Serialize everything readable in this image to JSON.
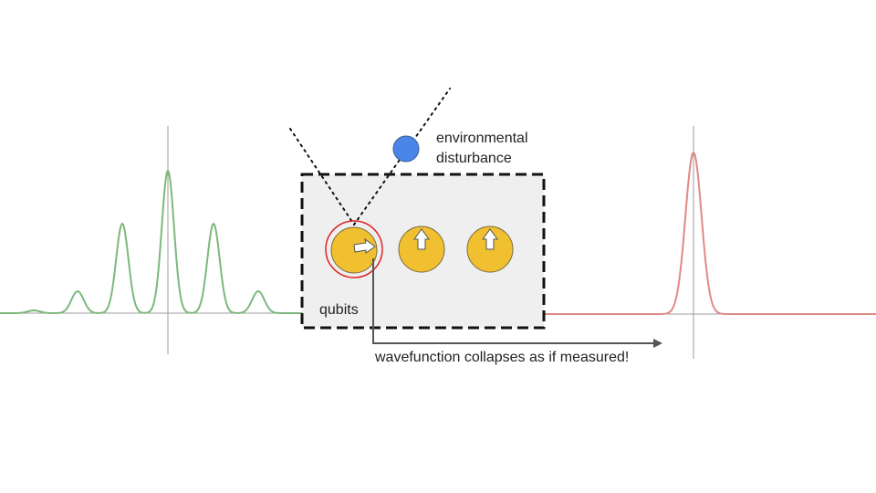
{
  "labels": {
    "environmental_line1": "environmental",
    "environmental_line2": "disturbance",
    "qubits": "qubits",
    "collapse": "wavefunction collapses as if measured!"
  },
  "qubits": [
    {
      "name": "disturbed",
      "arrow": "right",
      "highlighted": true
    },
    {
      "name": "qubit-2",
      "arrow": "up",
      "highlighted": false
    },
    {
      "name": "qubit-3",
      "arrow": "up",
      "highlighted": false
    }
  ],
  "colors": {
    "before_wave": "#7cb87c",
    "after_wave": "#e08a84",
    "qubit_fill": "#f0c030",
    "highlight_ring": "#e02020",
    "disturbance_particle": "#4a86e8",
    "box_fill": "#efefef",
    "axis": "#9e9e9e",
    "text": "#222222"
  }
}
